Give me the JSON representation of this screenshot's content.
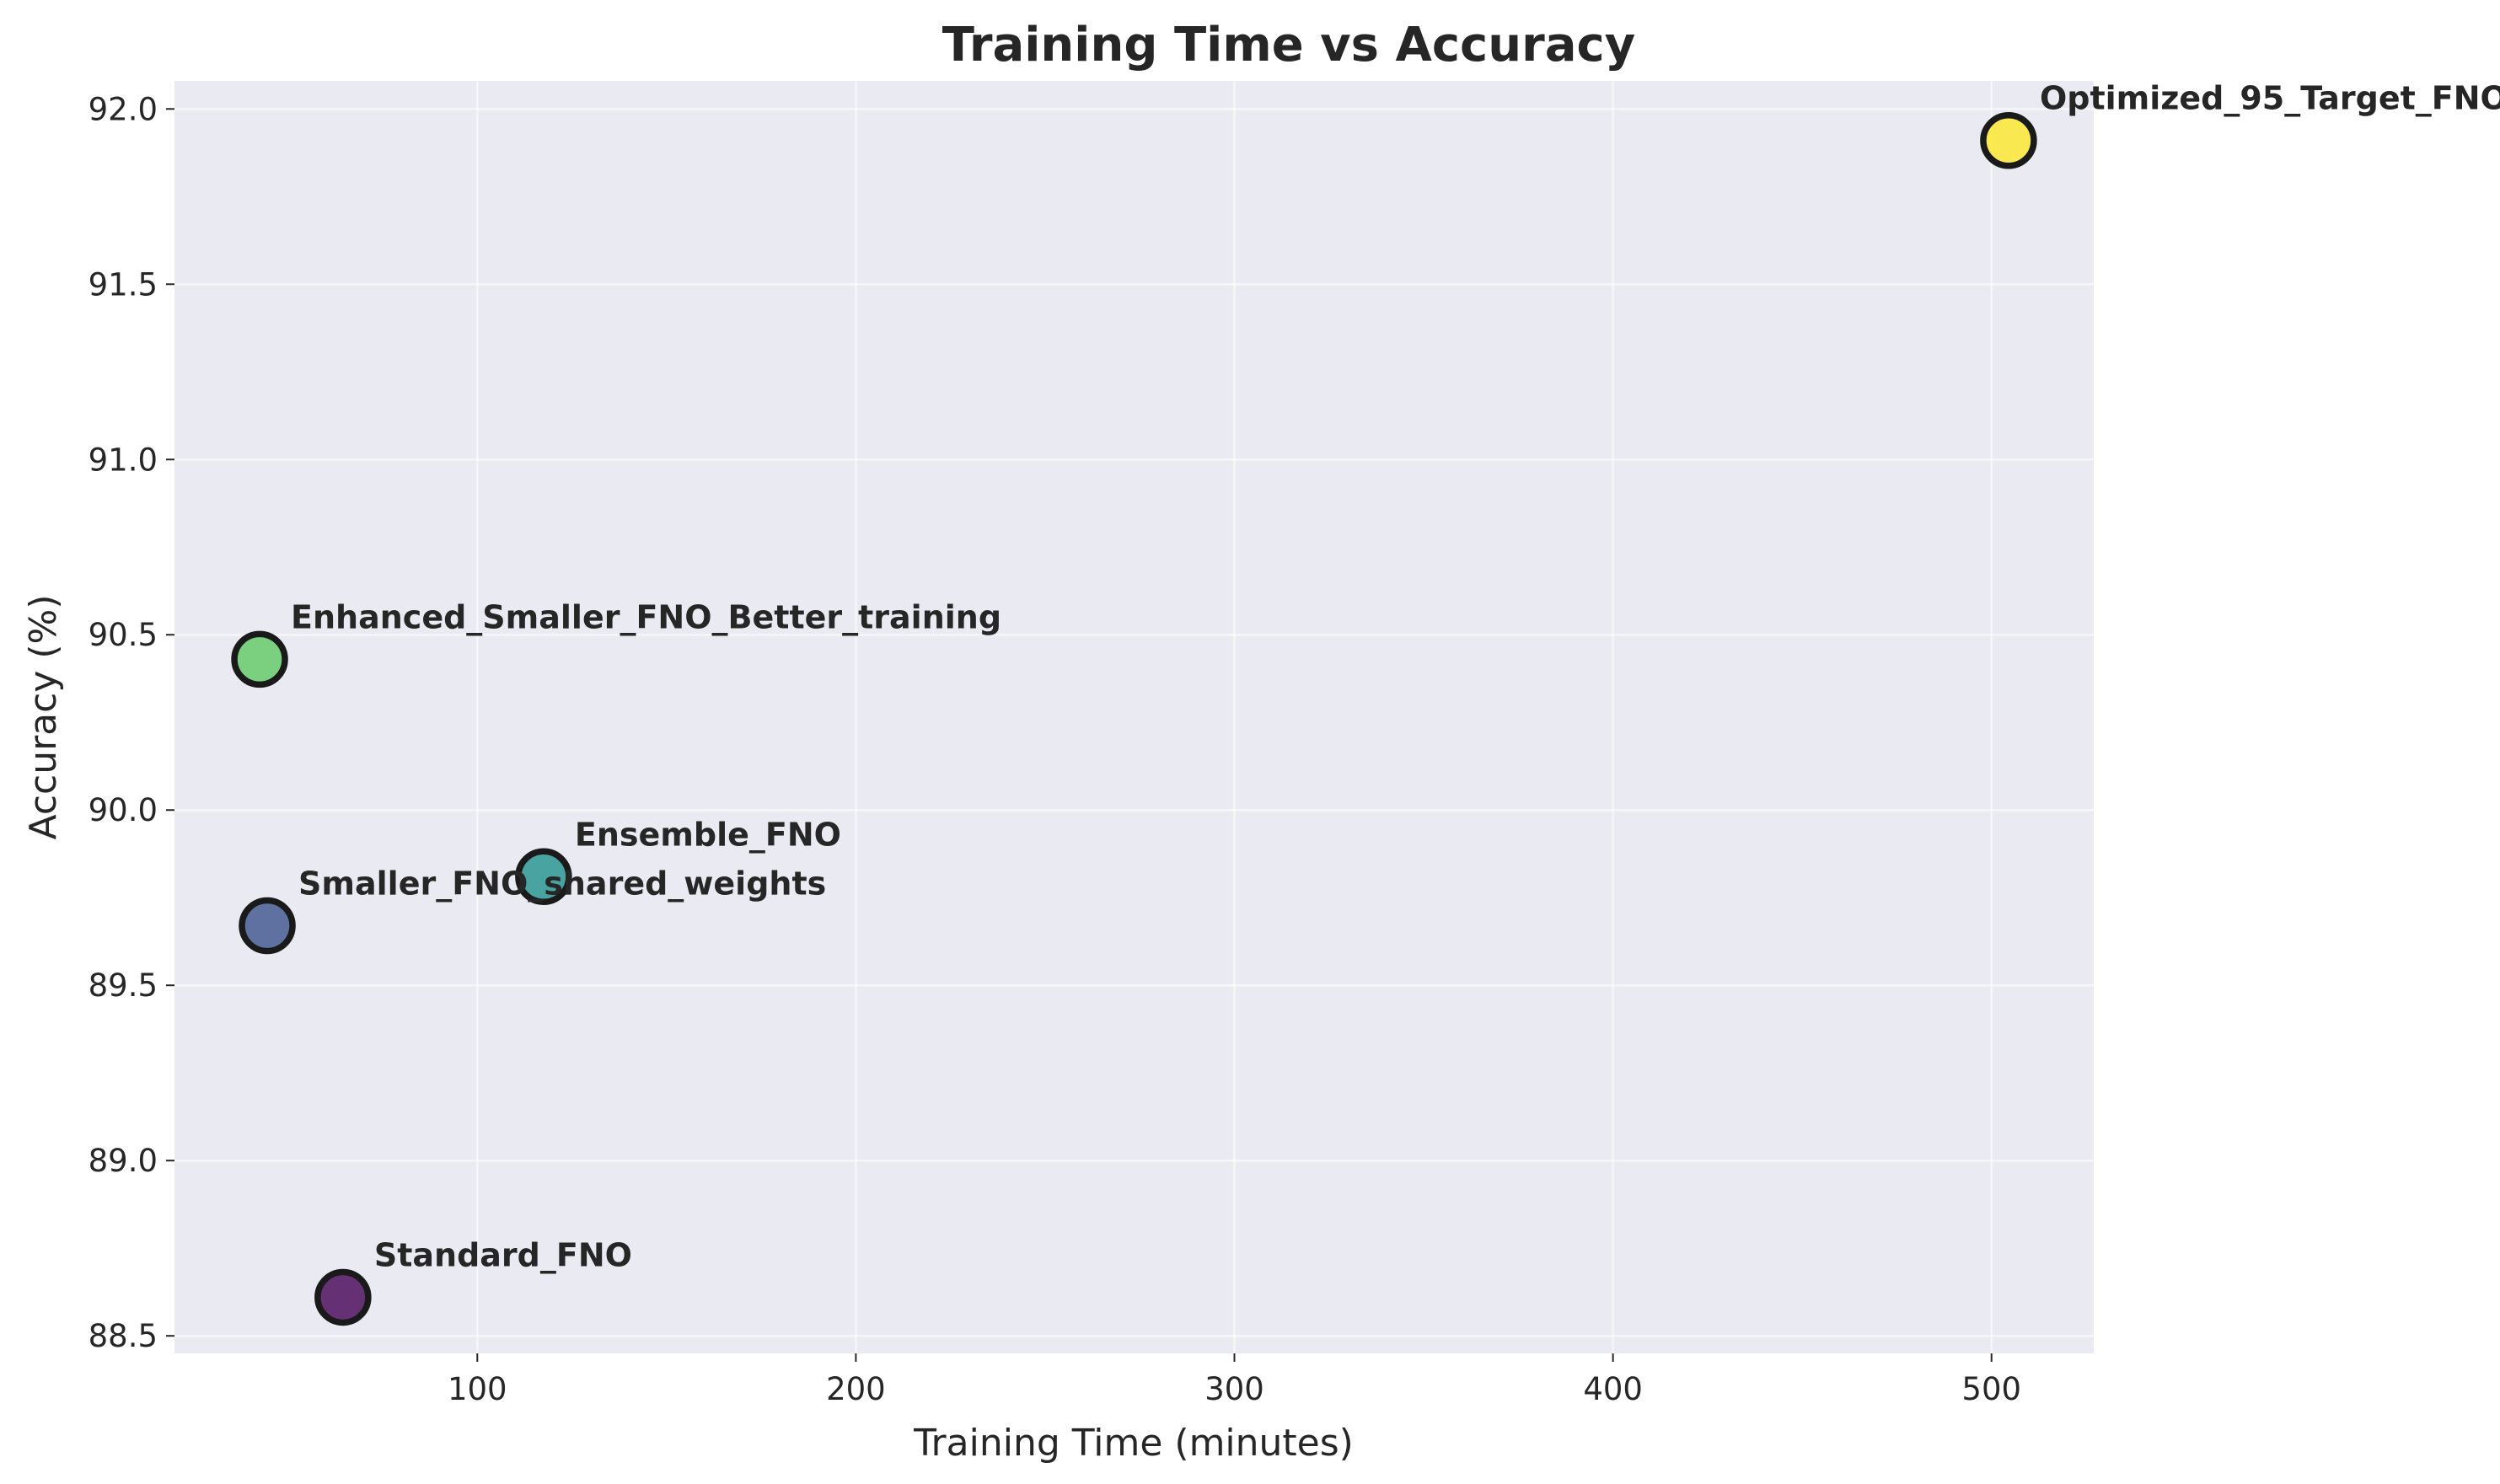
{
  "chart_data": {
    "type": "scatter",
    "title": "Training Time vs Accuracy",
    "xlabel": "Training Time (minutes)",
    "ylabel": "Accuracy (%)",
    "xlim": [
      20,
      527
    ],
    "ylim": [
      88.45,
      92.08
    ],
    "xticks": [
      100,
      200,
      300,
      400,
      500
    ],
    "yticks": [
      88.5,
      89.0,
      89.5,
      90.0,
      90.5,
      91.0,
      91.5,
      92.0
    ],
    "xtick_labels": [
      "100",
      "200",
      "300",
      "400",
      "500"
    ],
    "ytick_labels": [
      "88.5",
      "89.0",
      "89.5",
      "90.0",
      "90.5",
      "91.0",
      "91.5",
      "92.0"
    ],
    "grid": true,
    "points": [
      {
        "label": "Standard_FNO",
        "x": 64.5,
        "y": 88.61,
        "color": "#440154"
      },
      {
        "label": "Smaller_FNO_shared_weights",
        "x": 44.5,
        "y": 89.67,
        "color": "#3b528b"
      },
      {
        "label": "Ensemble_FNO",
        "x": 117.5,
        "y": 89.81,
        "color": "#21918c"
      },
      {
        "label": "Enhanced_Smaller_FNO_Better_training",
        "x": 42.5,
        "y": 90.43,
        "color": "#5ec962"
      },
      {
        "label": "Optimized_95_Target_FNO",
        "x": 504.5,
        "y": 91.91,
        "color": "#fde725"
      }
    ]
  }
}
